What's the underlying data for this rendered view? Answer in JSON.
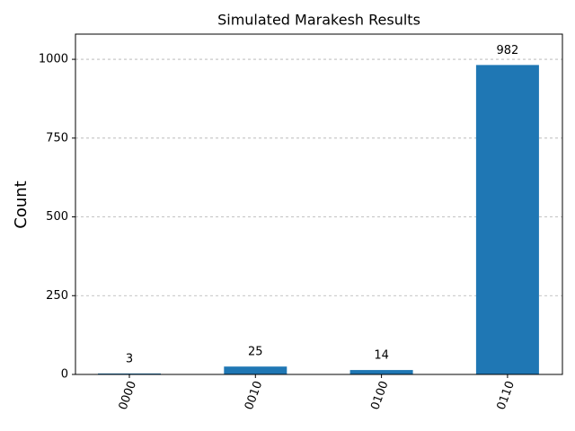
{
  "chart_data": {
    "type": "bar",
    "title": "Simulated Marakesh Results",
    "y_label": "Count",
    "categories": [
      "0000",
      "0010",
      "0100",
      "0110"
    ],
    "values": [
      3,
      25,
      14,
      982
    ],
    "color": "#1f77b4",
    "ylim": [
      0,
      1080
    ],
    "yticks": [
      0,
      250,
      500,
      750,
      1000
    ],
    "grid": true
  }
}
